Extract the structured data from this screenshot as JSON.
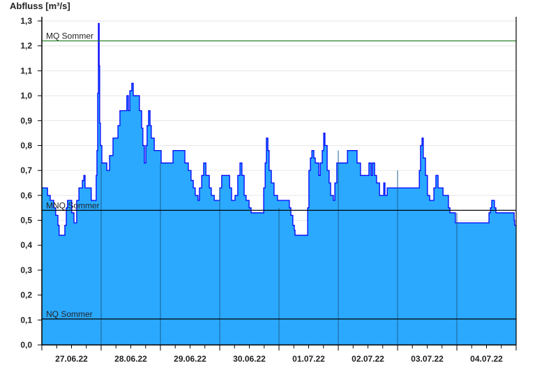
{
  "chart_data": {
    "type": "area",
    "ylabel": "Abfluss [m³/s]",
    "ylim": [
      0,
      1.3
    ],
    "y_ticks": [
      "0,0",
      "0,1",
      "0,2",
      "0,3",
      "0,4",
      "0,5",
      "0,6",
      "0,7",
      "0,8",
      "0,9",
      "1,0",
      "1,1",
      "1,2",
      "1,3"
    ],
    "x_ticks": [
      "27.06.22",
      "28.06.22",
      "29.06.22",
      "30.06.22",
      "01.07.22",
      "02.07.22",
      "03.07.22",
      "04.07.22"
    ],
    "x_range": [
      "27.06.22 00:00",
      "05.07.22 00:00"
    ],
    "grid": "horizontal",
    "colors": {
      "fill": "#2aa9ff",
      "line": "#0000ff",
      "mq": "#1a7a1a",
      "ref": "#000000",
      "day_line": "#1f5f8f",
      "grid": "#e6e6e6"
    },
    "reference_lines": [
      {
        "label": "MQ Sommer",
        "value": 1.22,
        "color": "#1a7a1a"
      },
      {
        "label": "MNQ Sommer",
        "value": 0.54,
        "color": "#000000"
      },
      {
        "label": "NQ Sommer",
        "value": 0.104,
        "color": "#000000"
      }
    ],
    "series_note_units": "hour of day, value in m³/s",
    "series": [
      {
        "day": "27.06.22",
        "points": [
          [
            0,
            0.63
          ],
          [
            2.3,
            0.6
          ],
          [
            3.4,
            0.58
          ],
          [
            4.8,
            0.55
          ],
          [
            5.6,
            0.52
          ],
          [
            6.5,
            0.48
          ],
          [
            7,
            0.44
          ],
          [
            9.3,
            0.48
          ],
          [
            9.9,
            0.55
          ],
          [
            10.4,
            0.58
          ],
          [
            12.1,
            0.53
          ],
          [
            13,
            0.49
          ],
          [
            14.1,
            0.58
          ],
          [
            15,
            0.63
          ],
          [
            16.4,
            0.66
          ],
          [
            17,
            0.68
          ],
          [
            17.5,
            0.63
          ],
          [
            20,
            0.58
          ],
          [
            22,
            0.68
          ],
          [
            22.3,
            0.78
          ],
          [
            22.6,
            1.01
          ],
          [
            22.9,
            1.29
          ],
          [
            23.2,
            1.12
          ],
          [
            23.4,
            0.89
          ],
          [
            23.7,
            0.8
          ]
        ]
      },
      {
        "day": "28.06.22",
        "points": [
          [
            0.3,
            0.73
          ],
          [
            2.3,
            0.7
          ],
          [
            3.4,
            0.76
          ],
          [
            4.8,
            0.83
          ],
          [
            6.8,
            0.88
          ],
          [
            7.6,
            0.94
          ],
          [
            10.4,
            1.0
          ],
          [
            11,
            0.94
          ],
          [
            11.6,
            1.02
          ],
          [
            12.4,
            1.05
          ],
          [
            13,
            1.0
          ],
          [
            15.5,
            0.94
          ],
          [
            16.4,
            0.87
          ],
          [
            16.9,
            0.8
          ],
          [
            17.5,
            0.73
          ],
          [
            18.1,
            0.8
          ],
          [
            18.6,
            0.88
          ],
          [
            19.2,
            0.94
          ],
          [
            19.8,
            0.88
          ],
          [
            20.3,
            0.83
          ],
          [
            21.5,
            0.78
          ]
        ]
      },
      {
        "day": "29.06.22",
        "points": [
          [
            0.3,
            0.73
          ],
          [
            5.1,
            0.78
          ],
          [
            9.9,
            0.73
          ],
          [
            11.3,
            0.7
          ],
          [
            12.4,
            0.66
          ],
          [
            13.3,
            0.63
          ],
          [
            14.1,
            0.6
          ],
          [
            15.2,
            0.58
          ],
          [
            15.8,
            0.63
          ],
          [
            16.7,
            0.68
          ],
          [
            17.5,
            0.73
          ],
          [
            18.4,
            0.68
          ],
          [
            19.8,
            0.63
          ],
          [
            20.6,
            0.6
          ],
          [
            21.8,
            0.58
          ]
        ]
      },
      {
        "day": "30.06.22",
        "points": [
          [
            0,
            0.63
          ],
          [
            0.8,
            0.68
          ],
          [
            4,
            0.63
          ],
          [
            4.8,
            0.58
          ],
          [
            6.2,
            0.6
          ],
          [
            7.3,
            0.68
          ],
          [
            8.2,
            0.73
          ],
          [
            9,
            0.68
          ],
          [
            9.9,
            0.6
          ],
          [
            10.7,
            0.58
          ],
          [
            11.9,
            0.55
          ],
          [
            12.7,
            0.53
          ],
          [
            17.8,
            0.63
          ],
          [
            18.4,
            0.73
          ],
          [
            18.9,
            0.83
          ],
          [
            19.5,
            0.78
          ],
          [
            20,
            0.7
          ],
          [
            20.9,
            0.65
          ],
          [
            22,
            0.6
          ],
          [
            23.4,
            0.58
          ]
        ]
      },
      {
        "day": "01.07.22",
        "points": [
          [
            4.2,
            0.55
          ],
          [
            4.8,
            0.52
          ],
          [
            5.6,
            0.48
          ],
          [
            6.2,
            0.46
          ],
          [
            6.5,
            0.44
          ],
          [
            11.6,
            0.55
          ],
          [
            12.1,
            0.7
          ],
          [
            12.7,
            0.75
          ],
          [
            13.3,
            0.78
          ],
          [
            14.1,
            0.75
          ],
          [
            14.7,
            0.73
          ],
          [
            16.1,
            0.68
          ],
          [
            16.7,
            0.73
          ],
          [
            17.5,
            0.78
          ],
          [
            18.1,
            0.85
          ],
          [
            18.6,
            0.8
          ],
          [
            19.5,
            0.7
          ],
          [
            20.3,
            0.65
          ],
          [
            20.9,
            0.6
          ],
          [
            22,
            0.58
          ],
          [
            22.6,
            0.65
          ],
          [
            23.4,
            0.73
          ]
        ]
      },
      {
        "day": "02.07.22",
        "points": [
          [
            3.7,
            0.78
          ],
          [
            7.6,
            0.73
          ],
          [
            9,
            0.68
          ],
          [
            12.4,
            0.73
          ],
          [
            13.3,
            0.68
          ],
          [
            13.8,
            0.73
          ],
          [
            14.7,
            0.68
          ],
          [
            15.5,
            0.65
          ],
          [
            16.7,
            0.6
          ],
          [
            18.4,
            0.65
          ],
          [
            18.9,
            0.6
          ],
          [
            19.8,
            0.63
          ]
        ]
      },
      {
        "day": "03.07.22",
        "points": [
          [
            8.8,
            0.7
          ],
          [
            9.3,
            0.8
          ],
          [
            9.9,
            0.83
          ],
          [
            10.4,
            0.75
          ],
          [
            11.3,
            0.68
          ],
          [
            12.1,
            0.6
          ],
          [
            13,
            0.58
          ],
          [
            14.7,
            0.63
          ],
          [
            15.5,
            0.68
          ],
          [
            16.4,
            0.63
          ],
          [
            18.4,
            0.6
          ],
          [
            20.6,
            0.55
          ],
          [
            21.2,
            0.53
          ],
          [
            23.4,
            0.49
          ]
        ]
      },
      {
        "day": "04.07.22",
        "points": [
          [
            13,
            0.53
          ],
          [
            13.6,
            0.55
          ],
          [
            14.1,
            0.58
          ],
          [
            15.2,
            0.55
          ],
          [
            15.8,
            0.53
          ],
          [
            23.2,
            0.5
          ],
          [
            23.4,
            0.48
          ]
        ]
      }
    ]
  }
}
